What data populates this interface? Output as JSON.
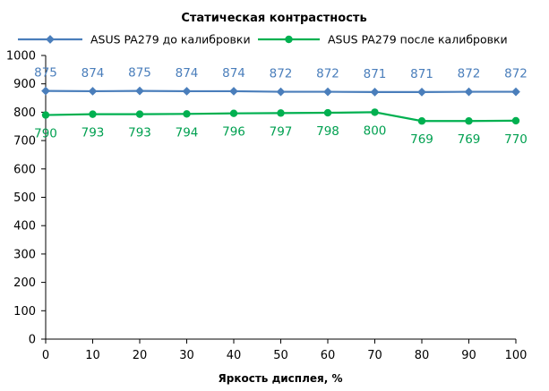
{
  "chart_data": {
    "type": "line",
    "title": "Статическая контрастность",
    "xlabel": "Яркость дисплея, %",
    "ylabel": "",
    "x": [
      0,
      10,
      20,
      30,
      40,
      50,
      60,
      70,
      80,
      90,
      100
    ],
    "xticks": [
      "0",
      "10",
      "20",
      "30",
      "40",
      "50",
      "60",
      "70",
      "80",
      "90",
      "100"
    ],
    "xlim": [
      0,
      100
    ],
    "ylim": [
      0,
      1000
    ],
    "yticks": [
      "0",
      "100",
      "200",
      "300",
      "400",
      "500",
      "600",
      "700",
      "800",
      "900",
      "1000"
    ],
    "grid": false,
    "legend_position": "top",
    "series": [
      {
        "name": "ASUS PA279 до калибровки",
        "color": "#4a7ebb",
        "label_color": "#4a7ebb",
        "marker": "diamond",
        "values": [
          875,
          874,
          875,
          874,
          874,
          872,
          872,
          871,
          871,
          872,
          872
        ],
        "labels": [
          "875",
          "874",
          "875",
          "874",
          "874",
          "872",
          "872",
          "871",
          "871",
          "872",
          "872"
        ],
        "label_position": "above"
      },
      {
        "name": "ASUS PA279 после калибровки",
        "color": "#00b050",
        "label_color": "#00a050",
        "marker": "circle",
        "values": [
          790,
          793,
          793,
          794,
          796,
          797,
          798,
          800,
          769,
          769,
          770
        ],
        "labels": [
          "790",
          "793",
          "793",
          "794",
          "796",
          "797",
          "798",
          "800",
          "769",
          "769",
          "770"
        ],
        "label_position": "below"
      }
    ]
  }
}
